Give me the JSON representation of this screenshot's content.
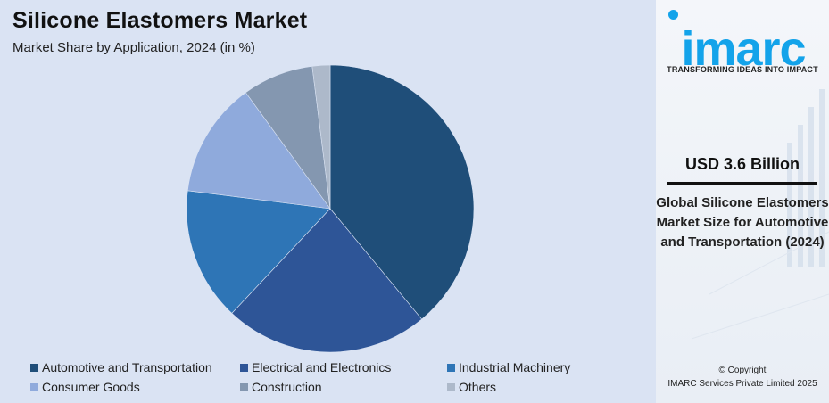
{
  "header": {
    "title": "Silicone Elastomers Market",
    "subtitle": "Market Share by Application, 2024 (in %)"
  },
  "legend": [
    {
      "label": "Automotive and Transportation",
      "color": "#1f4e79"
    },
    {
      "label": "Electrical and Electronics",
      "color": "#2e5597"
    },
    {
      "label": "Industrial Machinery",
      "color": "#2e75b6"
    },
    {
      "label": "Consumer Goods",
      "color": "#8faadc"
    },
    {
      "label": "Construction",
      "color": "#8497b0"
    },
    {
      "label": "Others",
      "color": "#adb9ca"
    }
  ],
  "sidebar": {
    "logo_text": "imarc",
    "tagline": "TRANSFORMING IDEAS INTO IMPACT",
    "value": "USD 3.6 Billion",
    "description": "Global Silicone Elastomers Market Size for Automotive and Transportation (2024)",
    "copyright_line1": "© Copyright",
    "copyright_line2": "IMARC Services Private Limited 2025"
  },
  "chart_data": {
    "type": "pie",
    "title": "Silicone Elastomers Market",
    "subtitle": "Market Share by Application, 2024 (in %)",
    "categories": [
      "Automotive and Transportation",
      "Electrical and Electronics",
      "Industrial Machinery",
      "Consumer Goods",
      "Construction",
      "Others"
    ],
    "values": [
      39,
      23,
      15,
      13,
      8,
      2
    ],
    "colors": [
      "#1f4e79",
      "#2e5597",
      "#2e75b6",
      "#8faadc",
      "#8497b0",
      "#adb9ca"
    ],
    "start_angle": "12 o'clock, clockwise",
    "legend_position": "bottom",
    "xlabel": "",
    "ylabel": ""
  }
}
